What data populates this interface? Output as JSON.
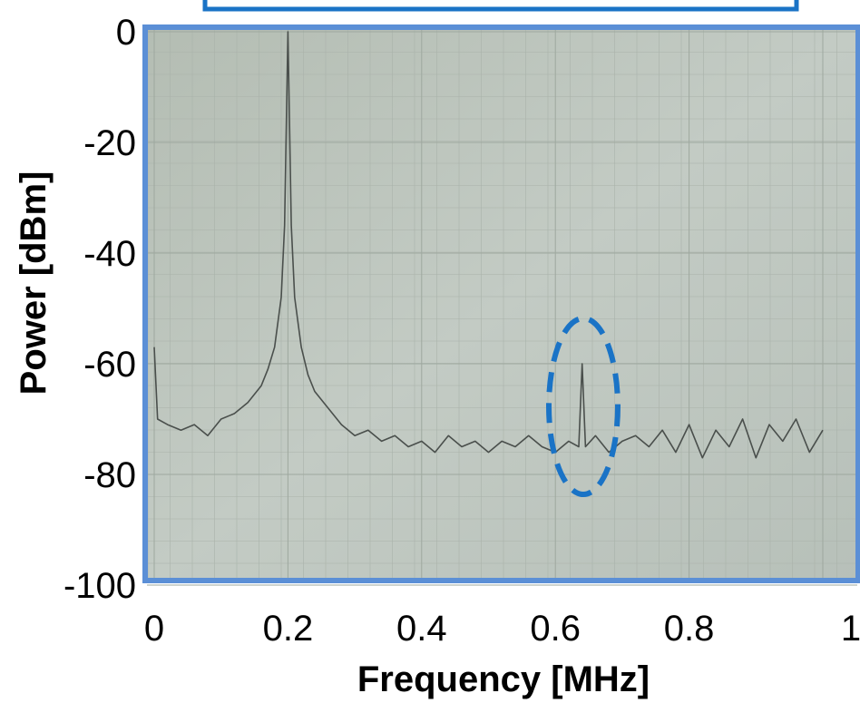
{
  "chart_data": {
    "type": "line",
    "x_label": "Frequency [MHz]",
    "y_label": "Power [dBm]",
    "xlim": [
      0,
      1
    ],
    "xticks": [
      0,
      0.2,
      0.4,
      0.6,
      0.8,
      1
    ],
    "ylim": [
      -100,
      0
    ],
    "yticks": [
      0,
      -20,
      -40,
      -60,
      -80,
      -100
    ],
    "grid": true,
    "x": [
      0,
      0.005,
      0.02,
      0.04,
      0.06,
      0.08,
      0.1,
      0.12,
      0.14,
      0.16,
      0.17,
      0.18,
      0.19,
      0.195,
      0.2,
      0.205,
      0.21,
      0.22,
      0.23,
      0.24,
      0.26,
      0.28,
      0.3,
      0.32,
      0.34,
      0.36,
      0.38,
      0.4,
      0.42,
      0.44,
      0.46,
      0.48,
      0.5,
      0.52,
      0.54,
      0.56,
      0.58,
      0.6,
      0.62,
      0.635,
      0.64,
      0.645,
      0.66,
      0.68,
      0.7,
      0.72,
      0.74,
      0.76,
      0.78,
      0.8,
      0.82,
      0.84,
      0.86,
      0.88,
      0.9,
      0.92,
      0.94,
      0.96,
      0.98,
      1
    ],
    "series": [
      {
        "color": "#4a4f4c",
        "values": [
          -57,
          -70,
          -71,
          -72,
          -71,
          -73,
          -70,
          -69,
          -67,
          -64,
          -61,
          -57,
          -48,
          -35,
          0,
          -35,
          -48,
          -57,
          -62,
          -65,
          -68,
          -71,
          -73,
          -72,
          -74,
          -73,
          -75,
          -74,
          -76,
          -73,
          -75,
          -74,
          -76,
          -74,
          -75,
          -73,
          -75,
          -76,
          -74,
          -75,
          -60,
          -75,
          -73,
          -76,
          -74,
          -73,
          -75,
          -72,
          -76,
          -71,
          -77,
          -72,
          -75,
          -70,
          -77,
          -71,
          -74,
          -70,
          -76,
          -72
        ]
      }
    ]
  }
}
